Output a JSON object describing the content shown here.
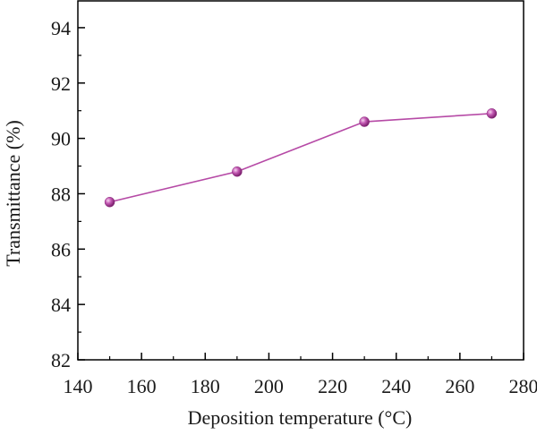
{
  "chart_data": {
    "type": "line",
    "title": "",
    "xlabel": "Deposition temperature (°C)",
    "ylabel": "Transmittance (%)",
    "xlim": [
      140,
      280
    ],
    "ylim": [
      82,
      95
    ],
    "xticks": [
      140,
      160,
      180,
      200,
      220,
      240,
      260,
      280
    ],
    "yticks": [
      82,
      84,
      86,
      88,
      90,
      92,
      94
    ],
    "grid": false,
    "series": [
      {
        "x": [
          150,
          190,
          230,
          270
        ],
        "values": [
          87.7,
          88.8,
          90.6,
          90.9
        ],
        "color": "#b64aa6",
        "marker": "sphere"
      }
    ]
  }
}
